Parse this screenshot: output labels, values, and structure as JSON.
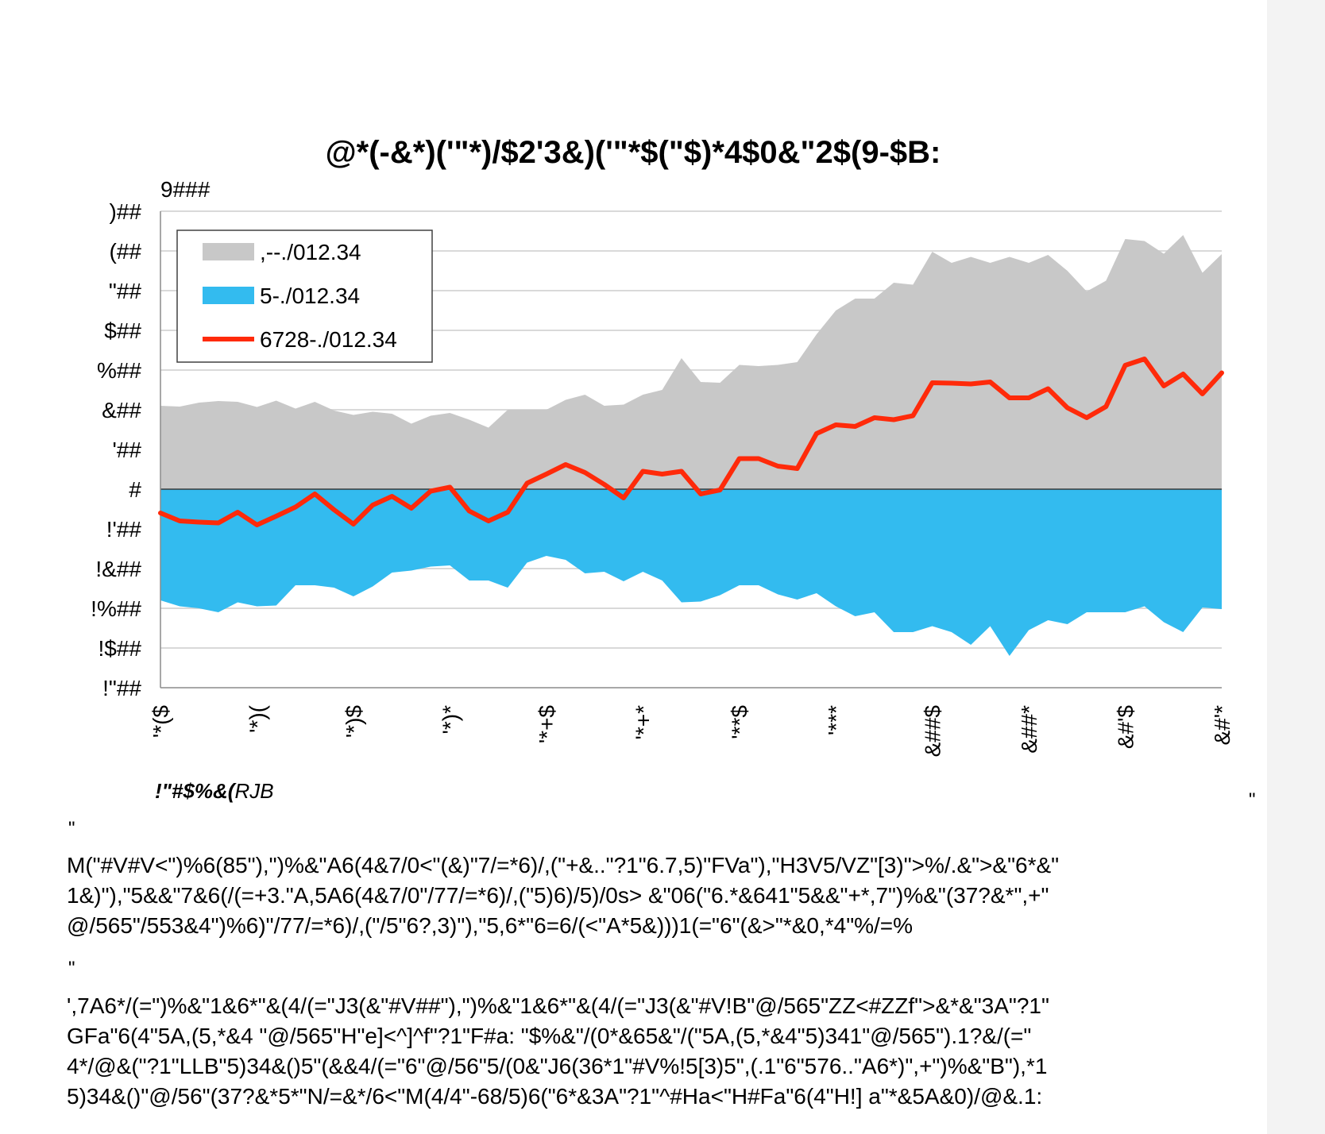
{
  "chart_data": {
    "type": "area",
    "title": "@*(-&*)('\"*)/$2'3&)('\"*$(\"$)*4$0&\"2$(9-$B:",
    "unit_label": "9###",
    "ylim": [
      -5,
      7
    ],
    "y_ticks": [
      {
        "v": 7,
        "label": ")##"
      },
      {
        "v": 6,
        "label": "(##"
      },
      {
        "v": 5,
        "label": "\"##"
      },
      {
        "v": 4,
        "label": "$##"
      },
      {
        "v": 3,
        "label": "%##"
      },
      {
        "v": 2,
        "label": "&##"
      },
      {
        "v": 1,
        "label": "'##"
      },
      {
        "v": 0,
        "label": "#"
      },
      {
        "v": -1,
        "label": "!'##"
      },
      {
        "v": -2,
        "label": "!&##"
      },
      {
        "v": -3,
        "label": "!%##"
      },
      {
        "v": -4,
        "label": "!$##"
      },
      {
        "v": -5,
        "label": "!\"##"
      }
    ],
    "x_ticks": [
      {
        "i": 0,
        "label": "'*($"
      },
      {
        "i": 5,
        "label": "'*)("
      },
      {
        "i": 10,
        "label": "'*)$"
      },
      {
        "i": 15,
        "label": "'*)*"
      },
      {
        "i": 20,
        "label": "'*+$"
      },
      {
        "i": 25,
        "label": "'*+*"
      },
      {
        "i": 30,
        "label": "'**$"
      },
      {
        "i": 35,
        "label": "'***"
      },
      {
        "i": 40,
        "label": "&##$"
      },
      {
        "i": 45,
        "label": "&##*"
      },
      {
        "i": 50,
        "label": "&#'$"
      },
      {
        "i": 55,
        "label": "&#'*"
      }
    ],
    "grid": true,
    "legend_position": "top-left",
    "series": [
      {
        "name": ",--./012.34",
        "kind": "area",
        "color": "#c8c8c8",
        "values": [
          2.1,
          2.08,
          2.18,
          2.22,
          2.2,
          2.07,
          2.23,
          2.03,
          2.2,
          1.98,
          1.87,
          1.95,
          1.9,
          1.65,
          1.85,
          1.92,
          1.75,
          1.55,
          2.0,
          2.0,
          2.0,
          2.25,
          2.38,
          2.1,
          2.13,
          2.38,
          2.5,
          3.3,
          2.7,
          2.68,
          3.13,
          3.1,
          3.13,
          3.2,
          3.9,
          4.5,
          4.8,
          4.8,
          5.2,
          5.15,
          5.98,
          5.7,
          5.85,
          5.7,
          5.85,
          5.7,
          5.9,
          5.5,
          4.98,
          5.25,
          6.3,
          6.25,
          5.93,
          6.4,
          5.45,
          5.92
        ]
      },
      {
        "name": "5-./012.34",
        "kind": "area",
        "color": "#33bbef",
        "values": [
          -2.8,
          -2.95,
          -3.0,
          -3.1,
          -2.85,
          -2.95,
          -2.93,
          -2.42,
          -2.42,
          -2.48,
          -2.7,
          -2.45,
          -2.1,
          -2.05,
          -1.95,
          -1.92,
          -2.3,
          -2.3,
          -2.48,
          -1.85,
          -1.68,
          -1.78,
          -2.12,
          -2.08,
          -2.32,
          -2.08,
          -2.3,
          -2.85,
          -2.83,
          -2.67,
          -2.42,
          -2.42,
          -2.65,
          -2.78,
          -2.62,
          -2.95,
          -3.2,
          -3.1,
          -3.6,
          -3.6,
          -3.45,
          -3.6,
          -3.92,
          -3.45,
          -4.2,
          -3.55,
          -3.3,
          -3.4,
          -3.1,
          -3.1,
          -3.1,
          -2.95,
          -3.35,
          -3.6,
          -2.98,
          -3.02
        ]
      },
      {
        "name": "6728-./012.34",
        "kind": "line",
        "color": "#ff2a0a",
        "values": [
          -0.6,
          -0.8,
          -0.83,
          -0.85,
          -0.58,
          -0.9,
          -0.68,
          -0.45,
          -0.12,
          -0.52,
          -0.88,
          -0.4,
          -0.18,
          -0.48,
          -0.05,
          0.05,
          -0.55,
          -0.8,
          -0.58,
          0.15,
          0.38,
          0.62,
          0.42,
          0.12,
          -0.22,
          0.45,
          0.38,
          0.45,
          -0.12,
          -0.02,
          0.77,
          0.77,
          0.58,
          0.52,
          1.4,
          1.62,
          1.58,
          1.8,
          1.75,
          1.85,
          2.68,
          2.67,
          2.65,
          2.7,
          2.3,
          2.3,
          2.53,
          2.05,
          1.8,
          2.08,
          3.12,
          3.28,
          2.6,
          2.9,
          2.4,
          2.93
        ]
      }
    ],
    "source": {
      "bold": "!\"#$%&(",
      "rest": "RJB"
    }
  },
  "side_marks": {
    "right": "\"",
    "top_left": "\""
  },
  "paragraph1": [
    "M(\"#V#V<\")%6(85\"),\")%&\"A6(4&7/0<\"(&)\"7/=*6)/,(\"+&..\"?1\"6.7,5)\"FVa\"),\"H3V5/VZ\"[3)\">%/.&\">&\"6*&\"",
    "1&)\"),\"5&&\"7&6(/(=+3.\"A,5A6(4&7/0\"/77/=*6)/,(\"5)6)/5)/0s> &\"06(\"6.*&641\"5&&\"+*,7\")%&\"(37?&*\",+\"",
    "@/565\"/553&4\")%6)\"/77/=*6)/,(\"/5\"6?,3)\"),\"5,6*\"6=6/(<\"A*5&)))1(=\"6\"(&>\"*&0,*4\"%/=%"
  ],
  "mid_mark": "\"",
  "paragraph2": [
    "',7A6*/(=\")%&\"1&6*\"&(4/(=\"J3(&\"#V##\"),\")%&\"1&6*\"&(4/(=\"J3(&\"#V!B\"@/565\"ZZ<#ZZf\">&*&\"3A\"?1\"",
    "GFa\"6(4\"5A,(5,*&4 \"@/565\"H\"e]<^]^f\"?1\"F#a: \"$%&\"/(0*&65&\"/(\"5A,(5,*&4\"5)341\"@/565\").1?&/(=\"",
    "4*/@&(\"?1\"LLB\"5)34&()5\"(&&4/(=\"6\"@/56\"5/(0&\"J6(36*1\"#V%!5[3)5\",(.1\"6\"576..\"A6*)\",+\")%&\"B\"),*1",
    "5)34&()\"@/56\"(37?&*5*\"N/=&*/6<\"M(4/4\"-68/5)6(\"6*&3A\"?1\"^#Ha<\"H#Fa\"6(4\"H!] a\"*&5A&0)/@&.1:"
  ]
}
